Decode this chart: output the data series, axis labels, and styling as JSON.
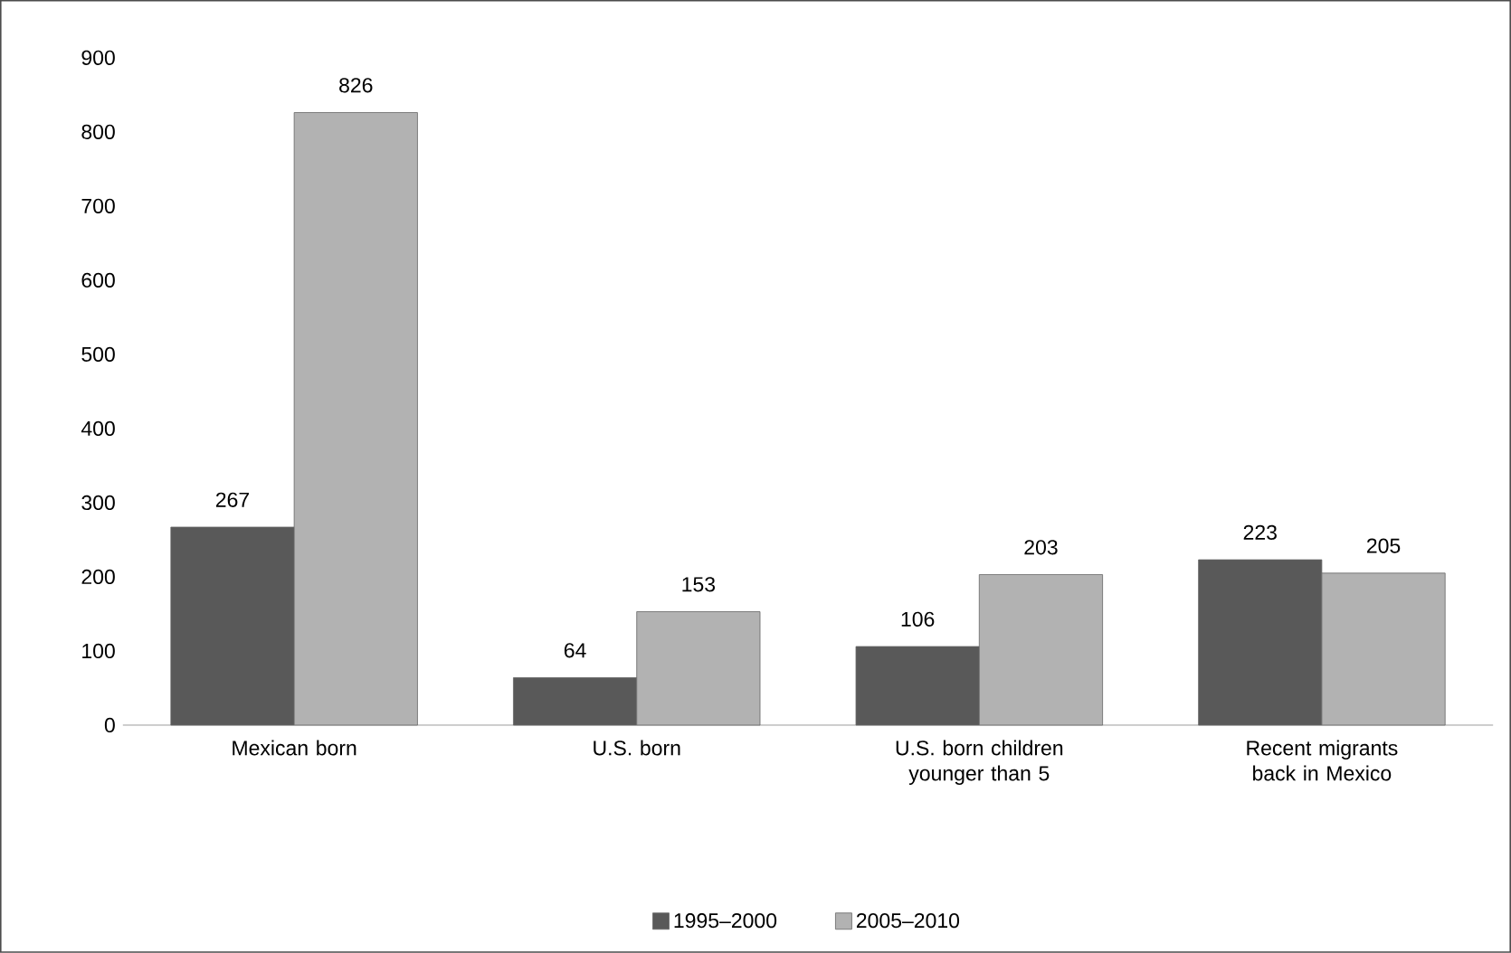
{
  "chart_data": {
    "type": "bar",
    "categories": [
      "Mexican born",
      "U.S. born",
      "U.S. born children younger than 5",
      "Recent migrants back in Mexico"
    ],
    "series": [
      {
        "name": "1995–2000",
        "color": "#595959",
        "values": [
          267,
          64,
          106,
          223
        ]
      },
      {
        "name": "2005–2010",
        "color": "#b2b2b2",
        "values": [
          826,
          153,
          203,
          205
        ]
      }
    ],
    "ylim": [
      0,
      900
    ],
    "yticks": [
      0,
      100,
      200,
      300,
      400,
      500,
      600,
      700,
      800,
      900
    ],
    "grid": false,
    "legend": "bottom",
    "data_labels": true
  }
}
